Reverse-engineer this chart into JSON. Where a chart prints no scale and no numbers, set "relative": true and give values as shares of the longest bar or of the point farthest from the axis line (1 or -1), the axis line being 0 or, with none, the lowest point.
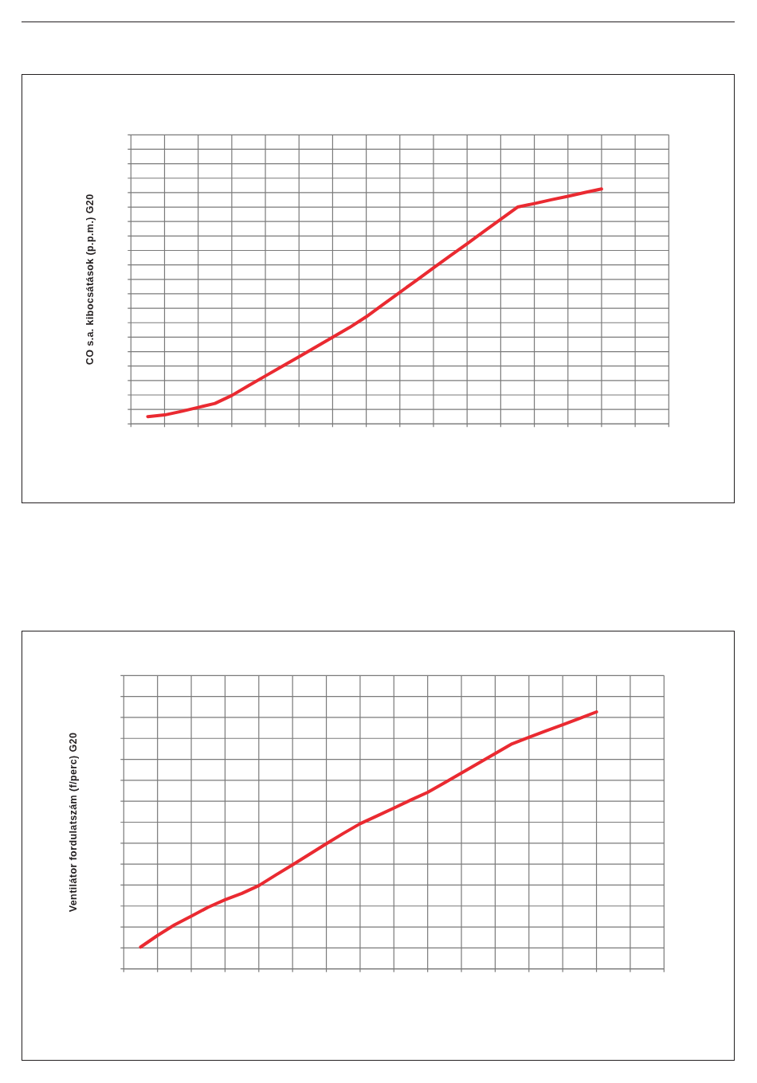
{
  "chart_data": [
    {
      "type": "line",
      "ylabel": "CO s.a. kibocsátások (p.p.m.) G20",
      "relative": true,
      "grid": true,
      "color": "#ea2a31",
      "categories": [
        null,
        null,
        null,
        null,
        null,
        null,
        null,
        null,
        null,
        null,
        null,
        null,
        null,
        null,
        null,
        null,
        null,
        null,
        null,
        null,
        null,
        null,
        null,
        null,
        null,
        null,
        null,
        null,
        null,
        null,
        null,
        null,
        null
      ],
      "values": [
        null,
        0.031,
        0.038,
        0.053,
        0.07,
        0.087,
        0.121,
        0.163,
        0.204,
        0.245,
        0.286,
        0.327,
        0.369,
        0.41,
        0.456,
        0.508,
        0.56,
        0.612,
        0.664,
        0.716,
        0.767,
        0.819,
        0.871,
        0.923,
        0.938,
        0.954,
        0.969,
        0.985,
        1,
        null,
        null,
        null,
        null
      ]
    },
    {
      "type": "line",
      "ylabel": "Ventilátor fordulatszám (f/perc) G20",
      "relative": true,
      "grid": true,
      "color": "#ea2a31",
      "categories": [
        null,
        null,
        null,
        null,
        null,
        null,
        null,
        null,
        null,
        null,
        null,
        null,
        null,
        null,
        null,
        null,
        null,
        null,
        null,
        null,
        null,
        null,
        null,
        null,
        null,
        null,
        null,
        null,
        null,
        null,
        null,
        null,
        null
      ],
      "values": [
        null,
        0.085,
        0.13,
        0.171,
        0.205,
        0.24,
        0.269,
        0.294,
        0.324,
        0.365,
        0.405,
        0.446,
        0.487,
        0.527,
        0.565,
        0.595,
        0.626,
        0.657,
        0.687,
        0.724,
        0.762,
        0.8,
        0.838,
        0.876,
        0.901,
        0.926,
        0.95,
        0.975,
        1,
        null,
        null,
        null,
        null
      ]
    }
  ]
}
